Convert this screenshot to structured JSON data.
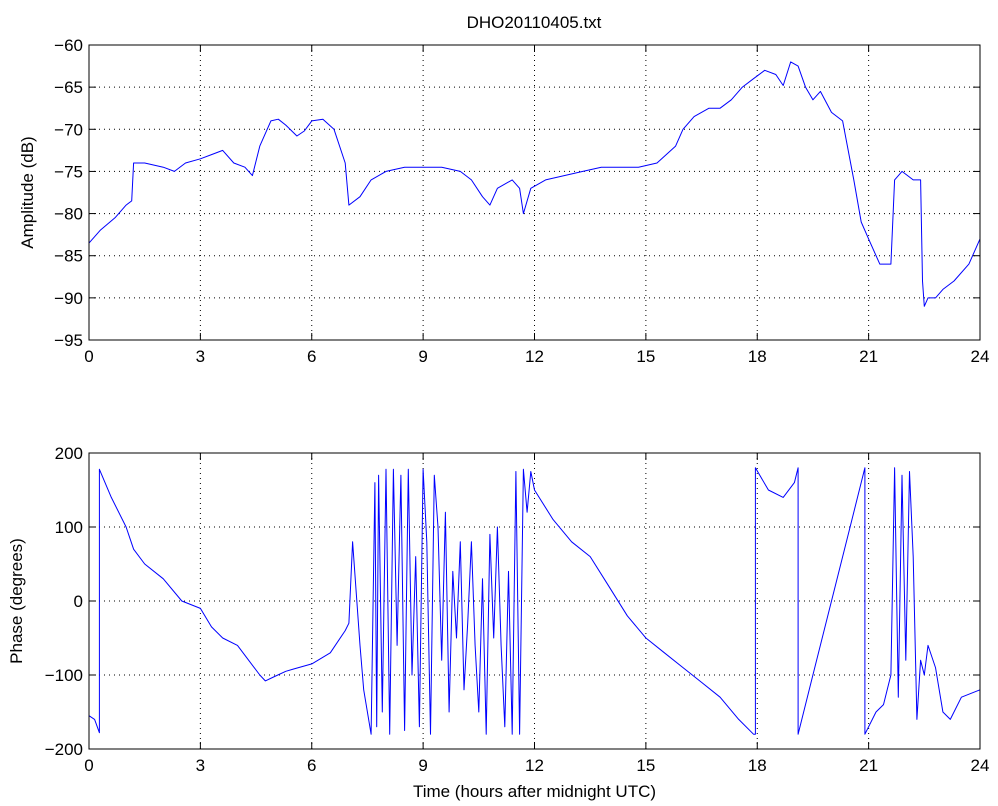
{
  "figure_title": "DHO20110405.txt",
  "chart_data": [
    {
      "type": "line",
      "title": "DHO20110405.txt",
      "xlabel": "",
      "ylabel": "Amplitude (dB)",
      "xlim": [
        0,
        24
      ],
      "ylim": [
        -95,
        -60
      ],
      "xticks": [
        0,
        3,
        6,
        9,
        12,
        15,
        18,
        21,
        24
      ],
      "yticks": [
        -95,
        -90,
        -85,
        -80,
        -75,
        -70,
        -65,
        -60
      ],
      "grid": true,
      "series_color": "#0000ff",
      "series": [
        {
          "x": [
            0,
            0.3,
            0.7,
            1.0,
            1.15,
            1.2,
            1.5,
            2.0,
            2.3,
            2.6,
            3.0,
            3.3,
            3.6,
            3.9,
            4.2,
            4.4,
            4.6,
            4.9,
            5.1,
            5.3,
            5.6,
            5.8,
            6.0,
            6.3,
            6.6,
            6.9,
            7.0,
            7.3,
            7.6,
            8.0,
            8.5,
            9.0,
            9.5,
            10.0,
            10.3,
            10.6,
            10.8,
            11.0,
            11.4,
            11.6,
            11.7,
            11.9,
            12.3,
            12.8,
            13.3,
            13.8,
            14.3,
            14.8,
            15.3,
            15.8,
            16.0,
            16.3,
            16.7,
            17.0,
            17.3,
            17.6,
            17.9,
            18.2,
            18.5,
            18.7,
            18.9,
            19.1,
            19.3,
            19.5,
            19.7,
            20.0,
            20.3,
            20.6,
            20.8,
            21.0,
            21.3,
            21.6,
            21.7,
            21.9,
            22.2,
            22.4,
            22.45,
            22.5,
            22.6,
            22.8,
            23.0,
            23.3,
            23.7,
            24.0
          ],
          "y": [
            -83.5,
            -82,
            -80.5,
            -79,
            -78.5,
            -74,
            -74,
            -74.5,
            -75,
            -74,
            -73.5,
            -73,
            -72.5,
            -74,
            -74.5,
            -75.5,
            -72,
            -69,
            -68.8,
            -69.5,
            -70.8,
            -70.2,
            -69,
            -68.8,
            -70,
            -74,
            -79,
            -78,
            -76,
            -75,
            -74.5,
            -74.5,
            -74.5,
            -75,
            -76,
            -78,
            -79,
            -77,
            -76,
            -77,
            -80,
            -77,
            -76,
            -75.5,
            -75,
            -74.5,
            -74.5,
            -74.5,
            -74,
            -72,
            -70,
            -68.5,
            -67.5,
            -67.5,
            -66.5,
            -65,
            -64,
            -63,
            -63.5,
            -64.8,
            -62,
            -62.5,
            -65,
            -66.5,
            -65.5,
            -68,
            -69,
            -76,
            -81,
            -83,
            -86,
            -86,
            -76,
            -75,
            -76,
            -76,
            -88,
            -91,
            -90,
            -90,
            -89,
            -88,
            -86,
            -83
          ]
        }
      ]
    },
    {
      "type": "line",
      "title": "",
      "xlabel": "Time (hours after midnight UTC)",
      "ylabel": "Phase (degrees)",
      "xlim": [
        0,
        24
      ],
      "ylim": [
        -200,
        200
      ],
      "xticks": [
        0,
        3,
        6,
        9,
        12,
        15,
        18,
        21,
        24
      ],
      "yticks": [
        -200,
        -100,
        0,
        100,
        200
      ],
      "grid": true,
      "series_color": "#0000ff",
      "series": [
        {
          "x": [
            0,
            0.15,
            0.28,
            0.28,
            0.6,
            1.0,
            1.2,
            1.5,
            2.0,
            2.5,
            3.0,
            3.3,
            3.6,
            4.0,
            4.3,
            4.6,
            4.75,
            5.0,
            5.3,
            5.5,
            6.0,
            6.5,
            6.9,
            7.0,
            7.1,
            7.2,
            7.3,
            7.4,
            7.6,
            7.7,
            7.75,
            7.8,
            7.9,
            8.0,
            8.1,
            8.2,
            8.3,
            8.4,
            8.5,
            8.6,
            8.7,
            8.8,
            8.9,
            9.0,
            9.1,
            9.2,
            9.3,
            9.4,
            9.5,
            9.6,
            9.7,
            9.8,
            9.9,
            10.0,
            10.1,
            10.2,
            10.3,
            10.4,
            10.5,
            10.6,
            10.7,
            10.8,
            10.9,
            11.0,
            11.1,
            11.2,
            11.3,
            11.4,
            11.5,
            11.6,
            11.7,
            11.8,
            11.9,
            12.0,
            12.5,
            13.0,
            13.5,
            14.0,
            14.5,
            15.0,
            15.5,
            16.0,
            16.5,
            17.0,
            17.5,
            17.9,
            17.95,
            17.95,
            18.3,
            18.7,
            19.0,
            19.1,
            19.1,
            19.5,
            20.0,
            20.5,
            20.9,
            20.9,
            21.2,
            21.4,
            21.5,
            21.6,
            21.7,
            21.8,
            21.9,
            22.0,
            22.1,
            22.2,
            22.3,
            22.4,
            22.5,
            22.6,
            22.8,
            23.0,
            23.2,
            23.5,
            24.0
          ],
          "y": [
            -155,
            -160,
            -178,
            178,
            140,
            100,
            70,
            50,
            30,
            0,
            -10,
            -35,
            -50,
            -60,
            -80,
            -100,
            -108,
            -102,
            -95,
            -92,
            -85,
            -70,
            -40,
            -30,
            80,
            10,
            -60,
            -120,
            -180,
            160,
            -170,
            170,
            -150,
            178,
            -180,
            178,
            -60,
            170,
            -175,
            178,
            -100,
            60,
            -170,
            178,
            80,
            -180,
            170,
            100,
            -80,
            120,
            -150,
            40,
            -50,
            80,
            -120,
            -30,
            80,
            -60,
            -150,
            30,
            -180,
            90,
            -50,
            100,
            -60,
            -170,
            40,
            -180,
            175,
            -180,
            178,
            120,
            175,
            150,
            110,
            80,
            60,
            20,
            -20,
            -50,
            -70,
            -90,
            -110,
            -130,
            -160,
            -180,
            -180,
            180,
            150,
            140,
            160,
            180,
            -180,
            -100,
            0,
            100,
            180,
            -180,
            -150,
            -140,
            -120,
            -100,
            180,
            -130,
            170,
            -80,
            175,
            60,
            -160,
            -80,
            -100,
            -60,
            -90,
            -150,
            -160,
            -130,
            -120
          ]
        }
      ]
    }
  ]
}
